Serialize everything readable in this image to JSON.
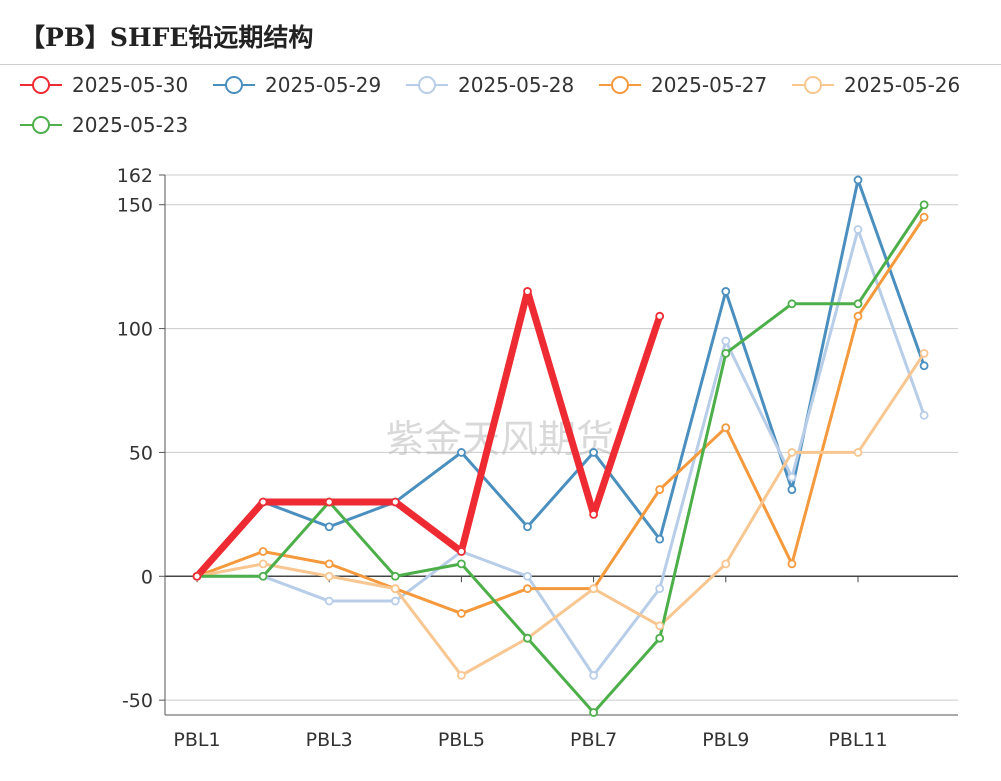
{
  "title": "【PB】SHFE铅远期结构",
  "watermark": "紫金天风期货",
  "chart_data": {
    "type": "line",
    "categories": [
      "PBL1",
      "PBL2",
      "PBL3",
      "PBL4",
      "PBL5",
      "PBL6",
      "PBL7",
      "PBL8",
      "PBL9",
      "PBL10",
      "PBL11",
      "PBL12"
    ],
    "x_tick_labels": [
      "PBL1",
      "PBL3",
      "PBL5",
      "PBL7",
      "PBL9",
      "PBL11"
    ],
    "y_ticks": [
      -50,
      0,
      50,
      100,
      150,
      162
    ],
    "ylim": [
      -56,
      162
    ],
    "grid": true,
    "legend_position": "top",
    "series": [
      {
        "name": "2025-05-30",
        "color": "#ee2b33",
        "emphasis": true,
        "values": [
          0,
          30,
          30,
          30,
          10,
          115,
          25,
          105,
          null,
          null,
          null,
          null
        ]
      },
      {
        "name": "2025-05-29",
        "color": "#4b8fbf",
        "values": [
          0,
          30,
          20,
          30,
          50,
          20,
          50,
          15,
          115,
          35,
          160,
          85
        ]
      },
      {
        "name": "2025-05-28",
        "color": "#b8cde8",
        "values": [
          0,
          0,
          -10,
          -10,
          10,
          0,
          -40,
          -5,
          95,
          40,
          140,
          65
        ]
      },
      {
        "name": "2025-05-27",
        "color": "#f5993d",
        "values": [
          0,
          10,
          5,
          -5,
          -15,
          -5,
          -5,
          35,
          60,
          5,
          105,
          145
        ]
      },
      {
        "name": "2025-05-26",
        "color": "#f8c690",
        "values": [
          0,
          5,
          0,
          -5,
          -40,
          -25,
          -5,
          -20,
          5,
          50,
          50,
          90
        ]
      },
      {
        "name": "2025-05-23",
        "color": "#4daf4a",
        "values": [
          0,
          0,
          30,
          0,
          5,
          -25,
          -55,
          -25,
          90,
          110,
          110,
          150
        ]
      }
    ]
  }
}
